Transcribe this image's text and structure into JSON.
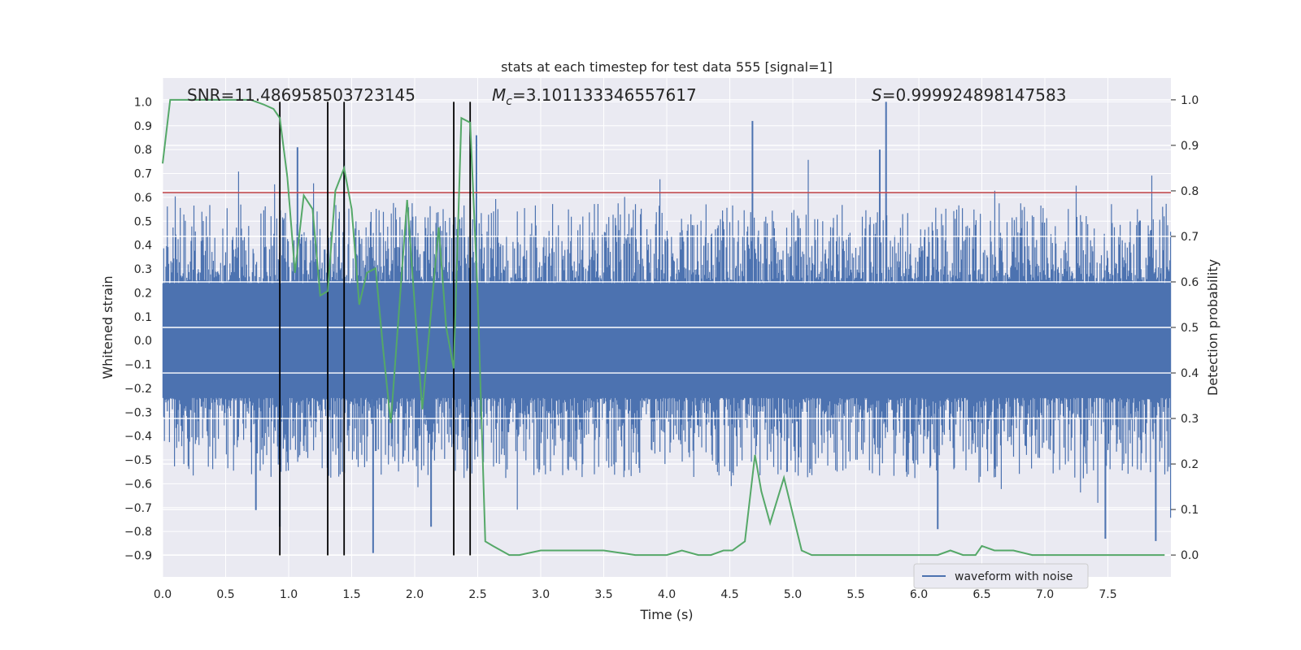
{
  "chart_data": {
    "type": "line",
    "title": "stats at each timestep for test data 555 [signal=1]",
    "xlabel": "Time (s)",
    "ylabel": "Whitened strain",
    "y2label": "Detection probability",
    "xlim": [
      0.0,
      8.0
    ],
    "ylim": [
      -0.99,
      1.1
    ],
    "y2lim": [
      -0.048,
      1.048
    ],
    "xticks": [
      "0.0",
      "0.5",
      "1.0",
      "1.5",
      "2.0",
      "2.5",
      "3.0",
      "3.5",
      "4.0",
      "4.5",
      "5.0",
      "5.5",
      "6.0",
      "6.5",
      "7.0",
      "7.5"
    ],
    "yticks": [
      "1.0",
      "0.9",
      "0.8",
      "0.7",
      "0.6",
      "0.5",
      "0.4",
      "0.3",
      "0.2",
      "0.1",
      "0.0",
      "−0.1",
      "−0.2",
      "−0.3",
      "−0.4",
      "−0.5",
      "−0.6",
      "−0.7",
      "−0.8",
      "−0.9"
    ],
    "y2ticks": [
      "1.0",
      "0.9",
      "0.8",
      "0.7",
      "0.6",
      "0.5",
      "0.4",
      "0.3",
      "0.2",
      "0.1",
      "0.0"
    ],
    "grid": true,
    "legend_position": "lower-right",
    "stats": {
      "snr": "SNR=11.486958503723145",
      "mc_symbol": "M",
      "mc_sub": "c",
      "mc_value": "=3.101133346557617",
      "s_symbol": "S",
      "s_value": "=0.999924898147583"
    },
    "threshold_strain": 0.62,
    "vlines_x": [
      0.93,
      1.31,
      1.44,
      2.31,
      2.44
    ],
    "vline_range": [
      -0.9,
      1.0
    ],
    "series": [
      {
        "name": "waveform with noise",
        "kind": "dense-noise",
        "color": "#4c72b0",
        "band_upper": 0.24,
        "band_lower": -0.24,
        "typical_peak": 0.45,
        "max_value": 1.0,
        "min_value": -0.9,
        "spikes": [
          {
            "x": 0.93,
            "y": -0.78
          },
          {
            "x": 1.07,
            "y": 0.81
          },
          {
            "x": 1.44,
            "y": 0.8
          },
          {
            "x": 1.67,
            "y": -0.89
          },
          {
            "x": 2.13,
            "y": -0.78
          },
          {
            "x": 2.49,
            "y": 0.86
          },
          {
            "x": 4.68,
            "y": 0.92
          },
          {
            "x": 5.74,
            "y": 1.0
          },
          {
            "x": 5.69,
            "y": 0.8
          },
          {
            "x": 0.74,
            "y": -0.71
          },
          {
            "x": 6.15,
            "y": -0.79
          },
          {
            "x": 7.88,
            "y": -0.84
          },
          {
            "x": 7.48,
            "y": -0.83
          }
        ]
      },
      {
        "name": "",
        "kind": "probability",
        "axis": "right",
        "color": "#55a868",
        "x": [
          0.0,
          0.06,
          0.12,
          0.2,
          0.3,
          0.4,
          0.5,
          0.6,
          0.7,
          0.8,
          0.88,
          0.93,
          0.99,
          1.05,
          1.12,
          1.19,
          1.25,
          1.31,
          1.37,
          1.44,
          1.5,
          1.56,
          1.62,
          1.69,
          1.75,
          1.81,
          1.94,
          2.06,
          2.19,
          2.25,
          2.31,
          2.37,
          2.44,
          2.5,
          2.56,
          2.62,
          2.75,
          2.83,
          3.0,
          3.13,
          3.3,
          3.5,
          3.75,
          4.0,
          4.12,
          4.25,
          4.35,
          4.45,
          4.52,
          4.62,
          4.7,
          4.75,
          4.82,
          4.93,
          5.0,
          5.07,
          5.15,
          5.3,
          5.6,
          6.0,
          6.15,
          6.25,
          6.35,
          6.45,
          6.5,
          6.6,
          6.75,
          6.9,
          7.2,
          7.5,
          7.8,
          7.95
        ],
        "y": [
          0.86,
          1.0,
          1.0,
          1.0,
          1.0,
          1.0,
          1.0,
          1.0,
          1.0,
          0.99,
          0.98,
          0.96,
          0.83,
          0.62,
          0.79,
          0.76,
          0.57,
          0.58,
          0.8,
          0.85,
          0.76,
          0.55,
          0.62,
          0.63,
          0.45,
          0.29,
          0.78,
          0.32,
          0.72,
          0.5,
          0.41,
          0.96,
          0.95,
          0.57,
          0.03,
          0.02,
          0.0,
          0.0,
          0.01,
          0.01,
          0.01,
          0.01,
          0.0,
          0.0,
          0.01,
          0.0,
          0.0,
          0.01,
          0.01,
          0.03,
          0.22,
          0.14,
          0.07,
          0.17,
          0.09,
          0.01,
          0.0,
          0.0,
          0.0,
          0.0,
          0.0,
          0.01,
          0.0,
          0.0,
          0.02,
          0.01,
          0.01,
          0.0,
          0.0,
          0.0,
          0.0,
          0.0
        ]
      }
    ]
  }
}
